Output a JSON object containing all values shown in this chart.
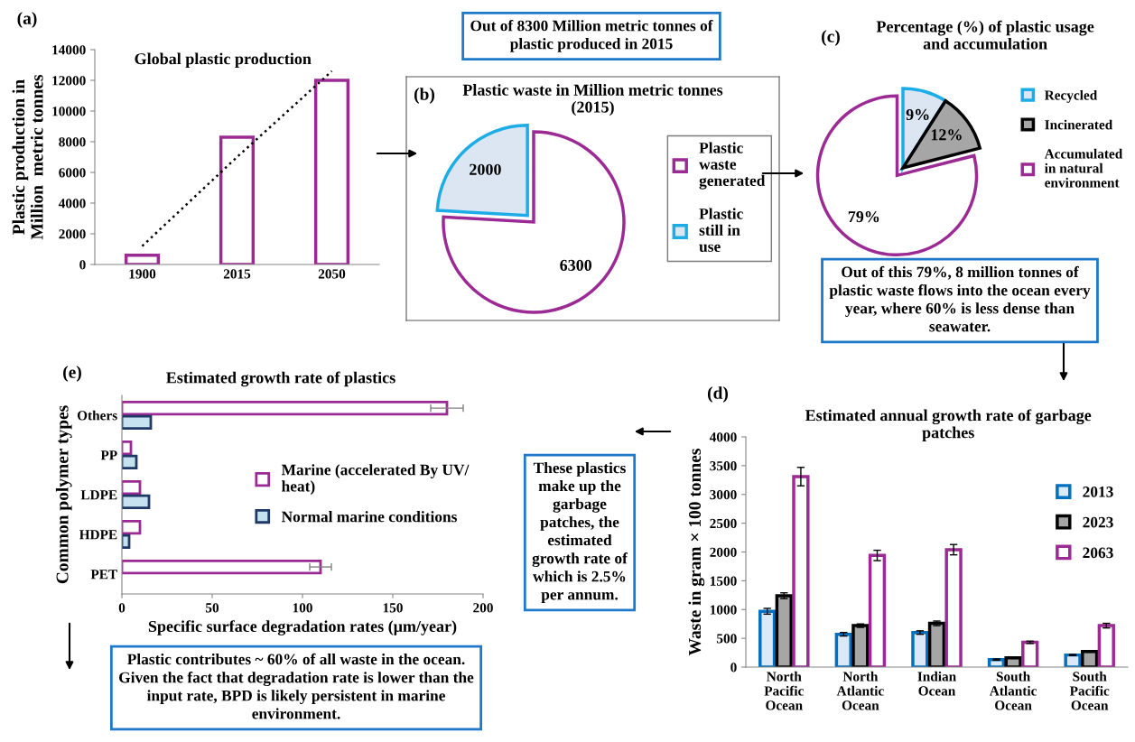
{
  "chart_data": [
    {
      "type": "bar",
      "title": "Global plastic production",
      "ylabel": "Plastic production in Million  metric tonnes",
      "categories": [
        "1900",
        "2015",
        "2050"
      ],
      "series": [
        {
          "type": "bar",
          "color": "#ffffff",
          "values": [
            600,
            8300,
            12000
          ]
        },
        {
          "type": "line",
          "color": "#000000",
          "line_style": "dotted",
          "marker": "none",
          "values": [
            1200,
            7000,
            12600
          ]
        }
      ],
      "ylim": [
        0,
        14000
      ],
      "yticks": [
        0,
        2000,
        4000,
        6000,
        8000,
        10000,
        12000,
        14000
      ],
      "annotations": [
        "(a)"
      ]
    },
    {
      "type": "pie",
      "title": "Plastic waste in Million metric tonnes (2015)",
      "categories": [
        "Plastic waste generated",
        "Plastic still in use"
      ],
      "values": [
        6300,
        2000
      ],
      "colors": [
        "#ffffff",
        "#dce6f2"
      ],
      "data_labels": true,
      "legend": "right",
      "annotations": [
        "(b)",
        "Out of 8300 Million metric tonnes of plastic produced in 2015"
      ]
    },
    {
      "type": "pie",
      "title": "Percentage (%) of plastic usage and accumulation",
      "categories": [
        "Recycled",
        "Incinerated",
        "Accumulated in natural environment"
      ],
      "values": [
        9,
        12,
        79
      ],
      "colors": [
        "#dce6f2",
        "#a6a6a6",
        "#ffffff"
      ],
      "value_labels": [
        "9%",
        "12%",
        "79%"
      ],
      "legend": "right",
      "annotations": [
        "(c)",
        "Out of this 79%, 8 million tonnes of plastic waste flows into the ocean every year, where 60% is less dense than seawater."
      ]
    },
    {
      "type": "bar",
      "orientation": "horizontal",
      "title": "Estimated growth rate of plastics",
      "xlabel": "Specific surface degradation rates (μm/year)",
      "ylabel": "Common polymer types",
      "categories": [
        "Others",
        "PP",
        "LDPE",
        "HDPE",
        "PET"
      ],
      "series": [
        {
          "name": "Marine (accelerated By UV/ heat)",
          "color": "#ffffff",
          "values": [
            180,
            5,
            10,
            10,
            110
          ],
          "errors": [
            9,
            null,
            null,
            null,
            6
          ]
        },
        {
          "name": "Normal marine conditions",
          "color": "#c6e2f0",
          "values": [
            16,
            8,
            15,
            4,
            null
          ]
        }
      ],
      "xlim": [
        0,
        200
      ],
      "xticks": [
        0,
        50,
        100,
        150,
        200
      ],
      "legend": "right",
      "annotations": [
        "(e)",
        "Plastic contributes ~ 60% of all waste in the ocean. Given the fact that degradation rate is lower than the input rate, BPD is likely persistent in marine environment."
      ]
    },
    {
      "type": "bar",
      "title": "Estimated annual growth rate of garbage patches",
      "ylabel": "Waste in gram × 100 tonnes",
      "categories": [
        "North Pacific Ocean",
        "North Atlantic Ocean",
        "Indian Ocean",
        "South Atlantic Ocean",
        "South Pacific Ocean"
      ],
      "series": [
        {
          "name": "2013",
          "color": "#dbe8f5",
          "values": [
            970,
            570,
            600,
            130,
            210
          ],
          "errors": [
            50,
            30,
            30,
            10,
            10
          ]
        },
        {
          "name": "2023",
          "color": "#a6a6a6",
          "values": [
            1240,
            720,
            760,
            160,
            270
          ],
          "errors": [
            50,
            30,
            40,
            10,
            10
          ]
        },
        {
          "name": "2063",
          "color": "#ffffff",
          "values": [
            3310,
            1940,
            2040,
            430,
            720
          ],
          "errors": [
            160,
            90,
            90,
            20,
            40
          ]
        }
      ],
      "ylim": [
        0,
        4000
      ],
      "yticks": [
        0,
        500,
        1000,
        1500,
        2000,
        2500,
        3000,
        3500,
        4000
      ],
      "legend": "top right",
      "annotations": [
        "(d)",
        "These plastics make up the garbage patches, the estimated growth rate of which is 2.5% per annum."
      ]
    }
  ]
}
